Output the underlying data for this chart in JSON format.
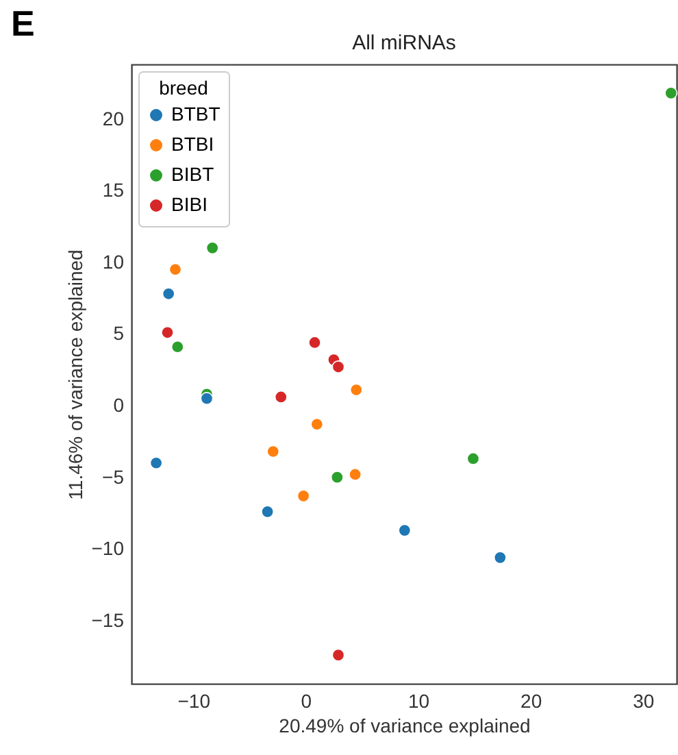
{
  "chart_data": {
    "type": "scatter",
    "title": "All miRNAs",
    "xlabel": "20.49% of variance explained",
    "ylabel": "11.46% of variance explained",
    "annotations": [
      "E"
    ],
    "legend_title": "breed",
    "legend": "top left",
    "marker": "circle",
    "grid": false,
    "xlim": [
      -15.5,
      33
    ],
    "ylim": [
      -19.4,
      23.8
    ],
    "xticks": [
      -10,
      0,
      10,
      20,
      30
    ],
    "yticks": [
      -15,
      -10,
      -5,
      0,
      5,
      10,
      15,
      20
    ],
    "series": [
      {
        "name": "BTBT",
        "color": "#1f77b4",
        "x": [
          -12.2,
          -8.8,
          -13.3,
          -3.4,
          8.8,
          17.3
        ],
        "values": [
          7.8,
          0.5,
          -4.0,
          -7.4,
          -8.7,
          -10.6
        ]
      },
      {
        "name": "BTBI",
        "color": "#ff7f0e",
        "x": [
          -11.6,
          4.5,
          1.0,
          -2.9,
          4.4,
          -0.2
        ],
        "values": [
          9.5,
          1.1,
          -1.3,
          -3.2,
          -4.8,
          -6.3
        ]
      },
      {
        "name": "BIBT",
        "color": "#2ca02c",
        "x": [
          -8.3,
          -11.4,
          -8.8,
          2.8,
          14.9,
          32.5
        ],
        "values": [
          11.0,
          4.1,
          0.8,
          -5.0,
          -3.7,
          21.8
        ]
      },
      {
        "name": "BIBI",
        "color": "#d62728",
        "x": [
          -12.3,
          0.8,
          2.5,
          2.9,
          -2.2,
          2.9
        ],
        "values": [
          5.1,
          4.4,
          3.2,
          2.7,
          0.6,
          -17.4
        ]
      }
    ]
  }
}
